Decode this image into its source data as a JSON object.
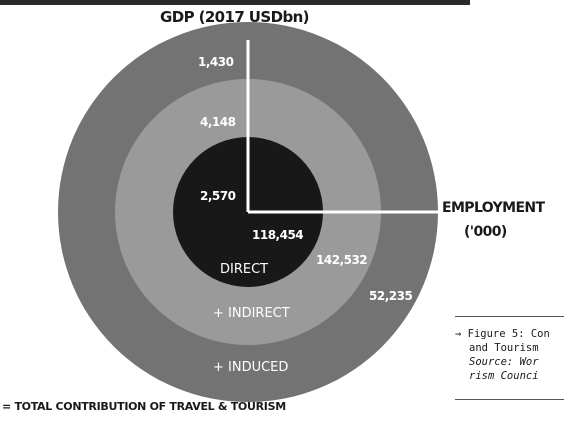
{
  "chart_data": {
    "type": "nested-circle",
    "title": "GDP (2017 USDbn)",
    "secondary_title": "EMPLOYMENT",
    "secondary_unit": "('000)",
    "rings": [
      {
        "name": "DIRECT",
        "gdp": 2570,
        "gdp_label": "2,570",
        "employment": 118454,
        "employment_label": "118,454",
        "color": "#181818"
      },
      {
        "name": "+ INDIRECT",
        "gdp": 4148,
        "gdp_label": "4,148",
        "employment": 142532,
        "employment_label": "142,532",
        "color": "#9a9a9a"
      },
      {
        "name": "+ INDUCED",
        "gdp": 1430,
        "gdp_label": "1,430",
        "employment": 52235,
        "employment_label": "52,235",
        "color": "#737373"
      }
    ],
    "footer": "= TOTAL CONTRIBUTION OF TRAVEL & TOURISM"
  },
  "caption": {
    "line1": "→ Figure 5: Con",
    "line2": "and Tourism",
    "line3": "Source: Wor",
    "line4": "rism Counci"
  }
}
